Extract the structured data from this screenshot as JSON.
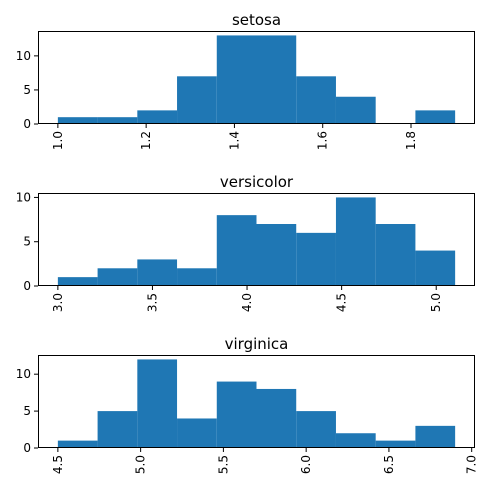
{
  "chart_data": [
    {
      "type": "bar",
      "title": "setosa",
      "xlabel": "",
      "ylabel": "",
      "bin_edges": [
        1.0,
        1.09,
        1.18,
        1.27,
        1.36,
        1.45,
        1.54,
        1.63,
        1.72,
        1.81,
        1.9
      ],
      "values": [
        1,
        1,
        2,
        7,
        13,
        13,
        7,
        4,
        0,
        2
      ],
      "xlim": [
        0.955,
        1.945
      ],
      "ylim": [
        0,
        13.65
      ],
      "xticks": [
        1.0,
        1.2,
        1.4,
        1.6,
        1.8
      ],
      "xtick_labels": [
        "1.0",
        "1.2",
        "1.4",
        "1.6",
        "1.8"
      ],
      "yticks": [
        0,
        5,
        10
      ],
      "ytick_labels": [
        "0",
        "5",
        "10"
      ],
      "bar_color": "#1f77b4",
      "grid": false,
      "xtick_rotation": "vertical"
    },
    {
      "type": "bar",
      "title": "versicolor",
      "xlabel": "",
      "ylabel": "",
      "bin_edges": [
        3.0,
        3.21,
        3.42,
        3.63,
        3.84,
        4.05,
        4.26,
        4.47,
        4.68,
        4.89,
        5.1
      ],
      "values": [
        1,
        2,
        3,
        2,
        8,
        7,
        6,
        10,
        7,
        4
      ],
      "xlim": [
        2.895,
        5.205
      ],
      "ylim": [
        0,
        10.5
      ],
      "xticks": [
        3.0,
        3.5,
        4.0,
        4.5,
        5.0
      ],
      "xtick_labels": [
        "3.0",
        "3.5",
        "4.0",
        "4.5",
        "5.0"
      ],
      "yticks": [
        0,
        5,
        10
      ],
      "ytick_labels": [
        "0",
        "5",
        "10"
      ],
      "bar_color": "#1f77b4",
      "grid": false,
      "xtick_rotation": "vertical"
    },
    {
      "type": "bar",
      "title": "virginica",
      "xlabel": "",
      "ylabel": "",
      "bin_edges": [
        4.5,
        4.74,
        4.98,
        5.22,
        5.46,
        5.7,
        5.94,
        6.18,
        6.42,
        6.66,
        6.9
      ],
      "values": [
        1,
        5,
        12,
        4,
        9,
        8,
        5,
        2,
        1,
        3
      ],
      "xlim": [
        4.38,
        7.02
      ],
      "ylim": [
        0,
        12.6
      ],
      "xticks": [
        4.5,
        5.0,
        5.5,
        6.0,
        6.5,
        7.0
      ],
      "xtick_labels": [
        "4.5",
        "5.0",
        "5.5",
        "6.0",
        "6.5",
        "7.0"
      ],
      "yticks": [
        0,
        5,
        10
      ],
      "ytick_labels": [
        "0",
        "5",
        "10"
      ],
      "bar_color": "#1f77b4",
      "grid": false,
      "xtick_rotation": "vertical"
    }
  ]
}
